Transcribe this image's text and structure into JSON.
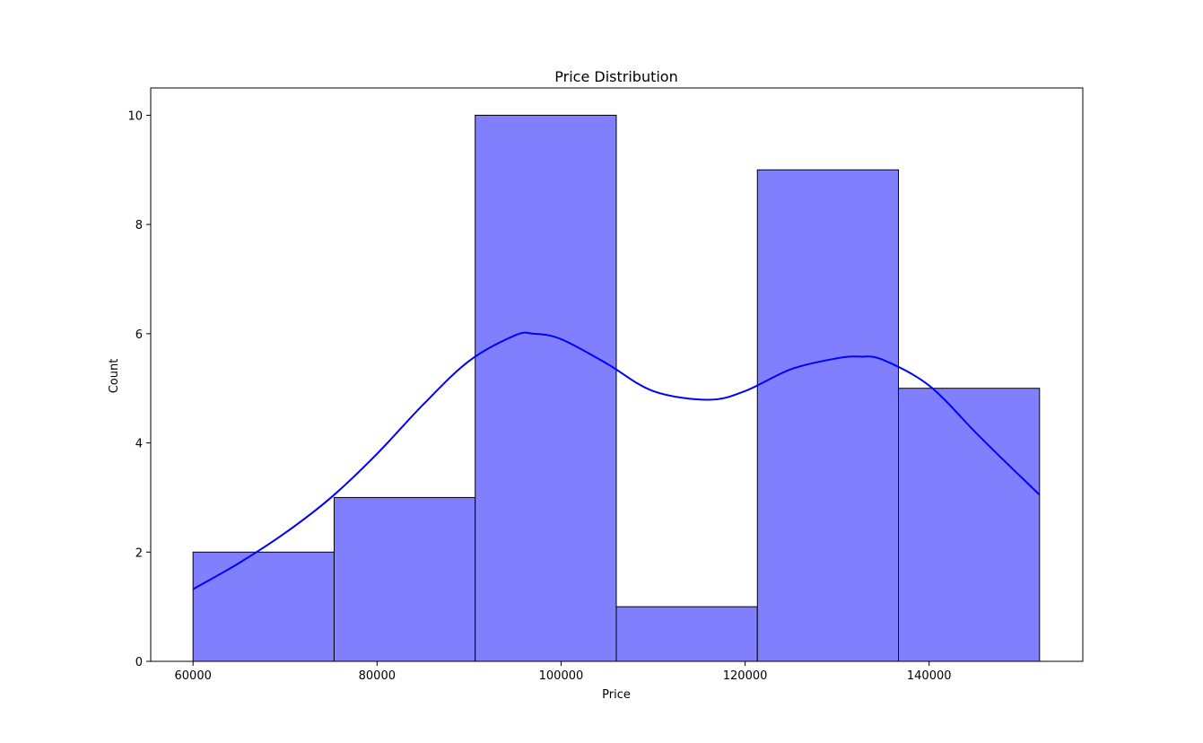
{
  "chart_data": {
    "type": "bar",
    "subtype": "histogram-with-kde",
    "title": "Price Distribution",
    "xlabel": "Price",
    "ylabel": "Count",
    "xlim": [
      55400,
      156700
    ],
    "ylim": [
      0,
      10.5
    ],
    "xticks": [
      60000,
      80000,
      100000,
      120000,
      140000
    ],
    "yticks": [
      0,
      2,
      4,
      6,
      8,
      10
    ],
    "bins": [
      {
        "start": 60000,
        "end": 75333,
        "count": 2
      },
      {
        "start": 75333,
        "end": 90667,
        "count": 3
      },
      {
        "start": 90667,
        "end": 106000,
        "count": 10
      },
      {
        "start": 106000,
        "end": 121333,
        "count": 1
      },
      {
        "start": 121333,
        "end": 136667,
        "count": 9
      },
      {
        "start": 136667,
        "end": 152000,
        "count": 5
      }
    ],
    "kde": {
      "x": [
        60000,
        65000,
        70000,
        75000,
        80000,
        85000,
        90000,
        95000,
        97000,
        100000,
        105000,
        110000,
        116000,
        120000,
        125000,
        130000,
        132500,
        135000,
        140000,
        145000,
        148000,
        152000
      ],
      "y": [
        1.32,
        1.8,
        2.35,
        3.0,
        3.8,
        4.7,
        5.5,
        5.97,
        6.0,
        5.9,
        5.45,
        4.95,
        4.79,
        4.95,
        5.35,
        5.55,
        5.58,
        5.52,
        5.05,
        4.2,
        3.7,
        3.05
      ]
    },
    "colors": {
      "bar_fill": "#8080ff",
      "bar_edge": "#000000",
      "kde_line": "#0000ff"
    },
    "grid": false,
    "legend": null
  }
}
